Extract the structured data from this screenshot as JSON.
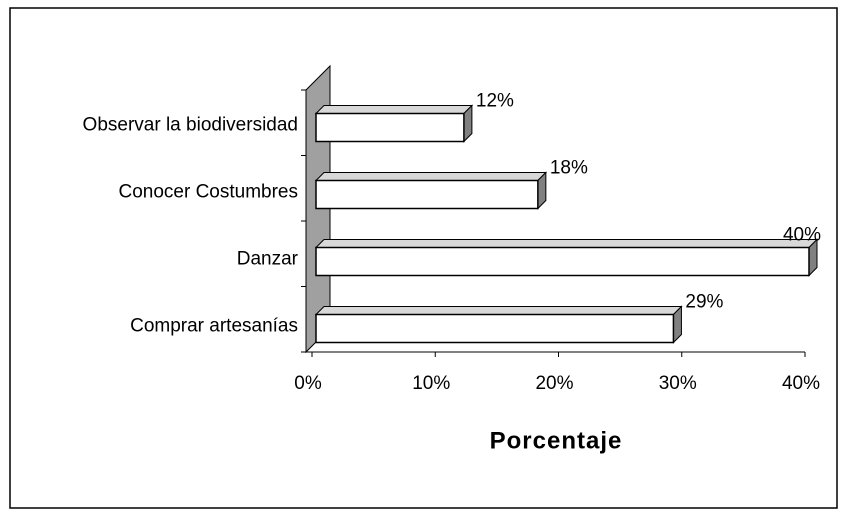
{
  "chart_data": {
    "type": "bar",
    "orientation": "horizontal",
    "x_label": "Porcentaje",
    "categories": [
      "Observar la biodiversidad",
      "Conocer Costumbres",
      "Danzar",
      "Comprar artesanías"
    ],
    "values": [
      12,
      18,
      40,
      29
    ],
    "value_labels": [
      "12%",
      "18%",
      "40%",
      "29%"
    ],
    "color": "#ffffff",
    "xlim": [
      0,
      40
    ],
    "xticks": [
      {
        "value": 0,
        "label": "0%"
      },
      {
        "value": 10,
        "label": "10%"
      },
      {
        "value": 20,
        "label": "20%"
      },
      {
        "value": 30,
        "label": "30%"
      },
      {
        "value": 40,
        "label": "40%"
      }
    ],
    "grid": false
  }
}
